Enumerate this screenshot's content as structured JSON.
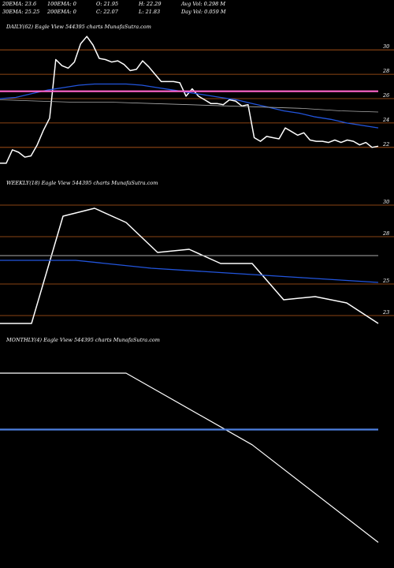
{
  "header": {
    "ema20": "20EMA: 23.6",
    "ema100": "100EMA: 0",
    "open": "O: 21.95",
    "high": "H: 22.29",
    "avgvol": "Avg Vol: 0.298 M",
    "ema30": "30EMA: 25.25",
    "ema200": "200EMA: 0",
    "close": "C: 22.07",
    "low": "L: 21.83",
    "dayvol": "Day Vol: 0.059 M"
  },
  "colors": {
    "background": "#000000",
    "price": "#ffffff",
    "ema_short": "#2255dd",
    "ema_long": "#aaaaaa",
    "grid": "#b85a1a",
    "highlight": "#ff66cc"
  },
  "chart_data": [
    {
      "type": "line",
      "label": "DAILY(62) Eagle View 544395 charts MunafaSutra.com",
      "ylim": [
        20.5,
        31.5
      ],
      "y_ticks": [
        30,
        28,
        26,
        24,
        22
      ],
      "series": [
        {
          "values": [
            20.7,
            20.7,
            21.8,
            21.6,
            21.2,
            21.3,
            22.2,
            23.4,
            24.4,
            29.2,
            28.7,
            28.5,
            29.0,
            30.5,
            31.1,
            30.4,
            29.3,
            29.2,
            29.0,
            29.1,
            28.8,
            28.3,
            28.4,
            29.1,
            28.6,
            28.0,
            27.4,
            27.4,
            27.4,
            27.3,
            26.2,
            26.8,
            26.2,
            25.9,
            25.6,
            25.6,
            25.5,
            25.9,
            25.8,
            25.4,
            25.5,
            22.8,
            22.5,
            22.9,
            22.8,
            22.7,
            23.6,
            23.3,
            23.0,
            23.2,
            22.6,
            22.5,
            22.5,
            22.4,
            22.6,
            22.4,
            22.6,
            22.5,
            22.2,
            22.4,
            22.0,
            22.1
          ]
        },
        {
          "values": [
            26.0,
            26.1,
            26.4,
            26.7,
            26.9,
            27.1,
            27.2,
            27.2,
            27.2,
            27.1,
            26.9,
            26.7,
            26.5,
            26.3,
            26.1,
            25.9,
            25.6,
            25.3,
            25.0,
            24.8,
            24.5,
            24.3,
            24.0,
            23.8,
            23.6
          ]
        },
        {
          "values": [
            25.9,
            25.8,
            25.7,
            25.7,
            25.6,
            25.5,
            25.4,
            25.3,
            25.2,
            25.0,
            24.9
          ]
        },
        {
          "values": [
            26.6,
            26.6
          ]
        }
      ]
    },
    {
      "type": "line",
      "label": "WEEKLY(18) Eagle View 544395 charts MunafaSutra.com",
      "ylim": [
        22.0,
        31.0
      ],
      "y_ticks": [
        30,
        28,
        25,
        23
      ],
      "series": [
        {
          "values": [
            22.5,
            22.5,
            29.3,
            29.8,
            28.9,
            27.0,
            27.2,
            26.3,
            26.3,
            24.0,
            24.2,
            23.8,
            22.5
          ]
        },
        {
          "values": [
            26.5,
            26.5,
            26.0,
            25.7,
            25.4,
            25.1
          ]
        },
        {
          "values": [
            26.8,
            26.8
          ]
        }
      ]
    },
    {
      "type": "line",
      "label": "MONTHLY(4) Eagle View 544395 charts MunafaSutra.com",
      "ylim": [
        0,
        1
      ],
      "y_ticks": [],
      "series": [
        {
          "values": [
            0.88,
            0.88,
            0.55,
            0.1
          ]
        },
        {
          "values": [
            0.62,
            0.62
          ]
        }
      ]
    }
  ]
}
